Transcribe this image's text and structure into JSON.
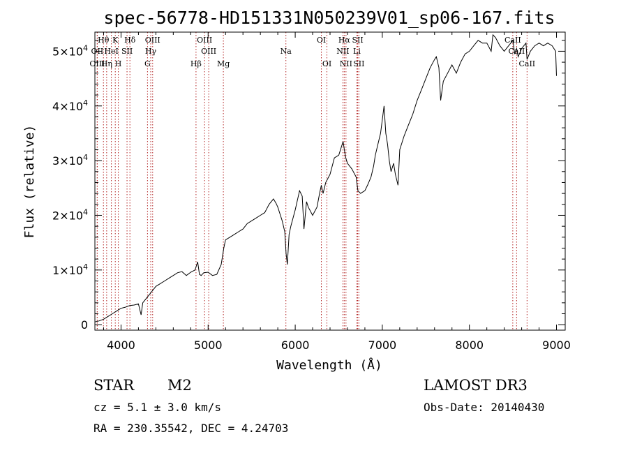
{
  "chart_data": {
    "type": "line",
    "title": "spec-56778-HD151331N050239V01_sp06-167.fits",
    "xlabel": "Wavelength (Å)",
    "ylabel": "Flux (relative)",
    "xlim": [
      3700,
      9100
    ],
    "ylim": [
      -1000,
      53500
    ],
    "x_ticks": [
      4000,
      5000,
      6000,
      7000,
      8000,
      9000
    ],
    "x_tick_labels": [
      "4000",
      "5000",
      "6000",
      "7000",
      "8000",
      "9000"
    ],
    "y_ticks": [
      0,
      10000,
      20000,
      30000,
      40000,
      50000
    ],
    "y_tick_labels": [
      {
        "base": "0",
        "exp": ""
      },
      {
        "base": "1×10",
        "exp": "4"
      },
      {
        "base": "2×10",
        "exp": "4"
      },
      {
        "base": "3×10",
        "exp": "4"
      },
      {
        "base": "4×10",
        "exp": "4"
      },
      {
        "base": "5×10",
        "exp": "4"
      }
    ],
    "series": [
      {
        "name": "flux",
        "x": [
          3700,
          3750,
          3800,
          3850,
          3900,
          3950,
          4000,
          4050,
          4100,
          4150,
          4200,
          4230,
          4250,
          4300,
          4350,
          4400,
          4450,
          4500,
          4550,
          4600,
          4650,
          4700,
          4750,
          4800,
          4850,
          4880,
          4900,
          4920,
          4950,
          5000,
          5050,
          5100,
          5150,
          5180,
          5200,
          5250,
          5300,
          5350,
          5400,
          5450,
          5500,
          5550,
          5600,
          5650,
          5700,
          5750,
          5780,
          5800,
          5830,
          5850,
          5880,
          5895,
          5910,
          5930,
          5950,
          6000,
          6050,
          6080,
          6100,
          6130,
          6150,
          6200,
          6250,
          6280,
          6300,
          6320,
          6350,
          6400,
          6450,
          6500,
          6550,
          6564,
          6580,
          6600,
          6650,
          6700,
          6720,
          6750,
          6800,
          6830,
          6870,
          6900,
          6920,
          6950,
          6980,
          7000,
          7020,
          7040,
          7060,
          7080,
          7100,
          7130,
          7150,
          7180,
          7200,
          7250,
          7300,
          7350,
          7400,
          7450,
          7500,
          7550,
          7600,
          7620,
          7650,
          7670,
          7700,
          7750,
          7800,
          7850,
          7900,
          7950,
          8000,
          8050,
          8100,
          8150,
          8200,
          8250,
          8270,
          8300,
          8350,
          8400,
          8450,
          8500,
          8520,
          8542,
          8560,
          8600,
          8650,
          8662,
          8700,
          8750,
          8800,
          8850,
          8900,
          8950,
          8990,
          9000
        ],
        "y": [
          500,
          700,
          1000,
          1500,
          2000,
          2500,
          3000,
          3200,
          3500,
          3600,
          3800,
          1800,
          4000,
          5000,
          6000,
          7000,
          7500,
          8000,
          8500,
          9000,
          9500,
          9700,
          9000,
          9600,
          10000,
          11500,
          9200,
          9000,
          9500,
          9600,
          9000,
          9200,
          11000,
          14000,
          15500,
          16000,
          16500,
          17000,
          17500,
          18500,
          19000,
          19500,
          20000,
          20500,
          22000,
          23000,
          22200,
          21500,
          20000,
          19000,
          17000,
          13000,
          11000,
          16500,
          18000,
          21000,
          24500,
          23500,
          17500,
          22500,
          21500,
          20000,
          21500,
          24000,
          25500,
          24000,
          26000,
          27500,
          30500,
          31000,
          33500,
          32000,
          30500,
          29500,
          28500,
          27000,
          24500,
          24000,
          24500,
          25500,
          27000,
          29000,
          31000,
          33000,
          35000,
          37500,
          40000,
          35000,
          33000,
          30000,
          28000,
          29500,
          27500,
          25500,
          32000,
          34500,
          36500,
          38500,
          41000,
          43000,
          45000,
          47000,
          48500,
          49000,
          47000,
          41000,
          44500,
          46000,
          47500,
          46000,
          48000,
          49500,
          50000,
          51000,
          52000,
          51500,
          51500,
          50000,
          53000,
          52500,
          51000,
          50000,
          51000,
          52000,
          49500,
          50500,
          49000,
          50500,
          51500,
          48500,
          50000,
          51000,
          51500,
          51000,
          51500,
          51000,
          50000,
          45500
        ]
      }
    ],
    "lines": [
      {
        "name": "Hθ",
        "wl": 3798,
        "row": 0
      },
      {
        "name": "OII",
        "wl": 3727,
        "row": 1
      },
      {
        "name": "OIII",
        "wl": 3727,
        "row": 2
      },
      {
        "name": "Hη",
        "wl": 3835,
        "row": 2
      },
      {
        "name": "HeI",
        "wl": 3889,
        "row": 1
      },
      {
        "name": "K",
        "wl": 3934,
        "row": 0
      },
      {
        "name": "H",
        "wl": 3969,
        "row": 2
      },
      {
        "name": "SII",
        "wl": 4069,
        "row": 1
      },
      {
        "name": "Hδ",
        "wl": 4102,
        "row": 0
      },
      {
        "name": "OIII",
        "wl": 4363,
        "row": 0
      },
      {
        "name": "Hγ",
        "wl": 4341,
        "row": 1
      },
      {
        "name": "G",
        "wl": 4304,
        "row": 2
      },
      {
        "name": "Hβ",
        "wl": 4861,
        "row": 2
      },
      {
        "name": "OIII",
        "wl": 4959,
        "row": 0
      },
      {
        "name": "OIII",
        "wl": 5007,
        "row": 1
      },
      {
        "name": "Mg",
        "wl": 5175,
        "row": 2
      },
      {
        "name": "Na",
        "wl": 5893,
        "row": 1
      },
      {
        "name": "OI",
        "wl": 6300,
        "row": 0
      },
      {
        "name": "OI",
        "wl": 6364,
        "row": 2
      },
      {
        "name": "Hα",
        "wl": 6563,
        "row": 0
      },
      {
        "name": "NII",
        "wl": 6548,
        "row": 1
      },
      {
        "name": "NII",
        "wl": 6583,
        "row": 2
      },
      {
        "name": "SII",
        "wl": 6717,
        "row": 0
      },
      {
        "name": "Li",
        "wl": 6708,
        "row": 1
      },
      {
        "name": "SII",
        "wl": 6731,
        "row": 2
      },
      {
        "name": "CaII",
        "wl": 8498,
        "row": 0
      },
      {
        "name": "CaII",
        "wl": 8542,
        "row": 1
      },
      {
        "name": "CaII",
        "wl": 8662,
        "row": 2
      }
    ]
  },
  "info": {
    "object_class": "STAR",
    "subclass": "M2",
    "redshift": "cz = 5.1 ± 3.0 km/s",
    "coords": "RA = 230.35542, DEC =    4.24703",
    "survey": "LAMOST DR3",
    "obs_date": "Obs-Date: 20140430"
  }
}
